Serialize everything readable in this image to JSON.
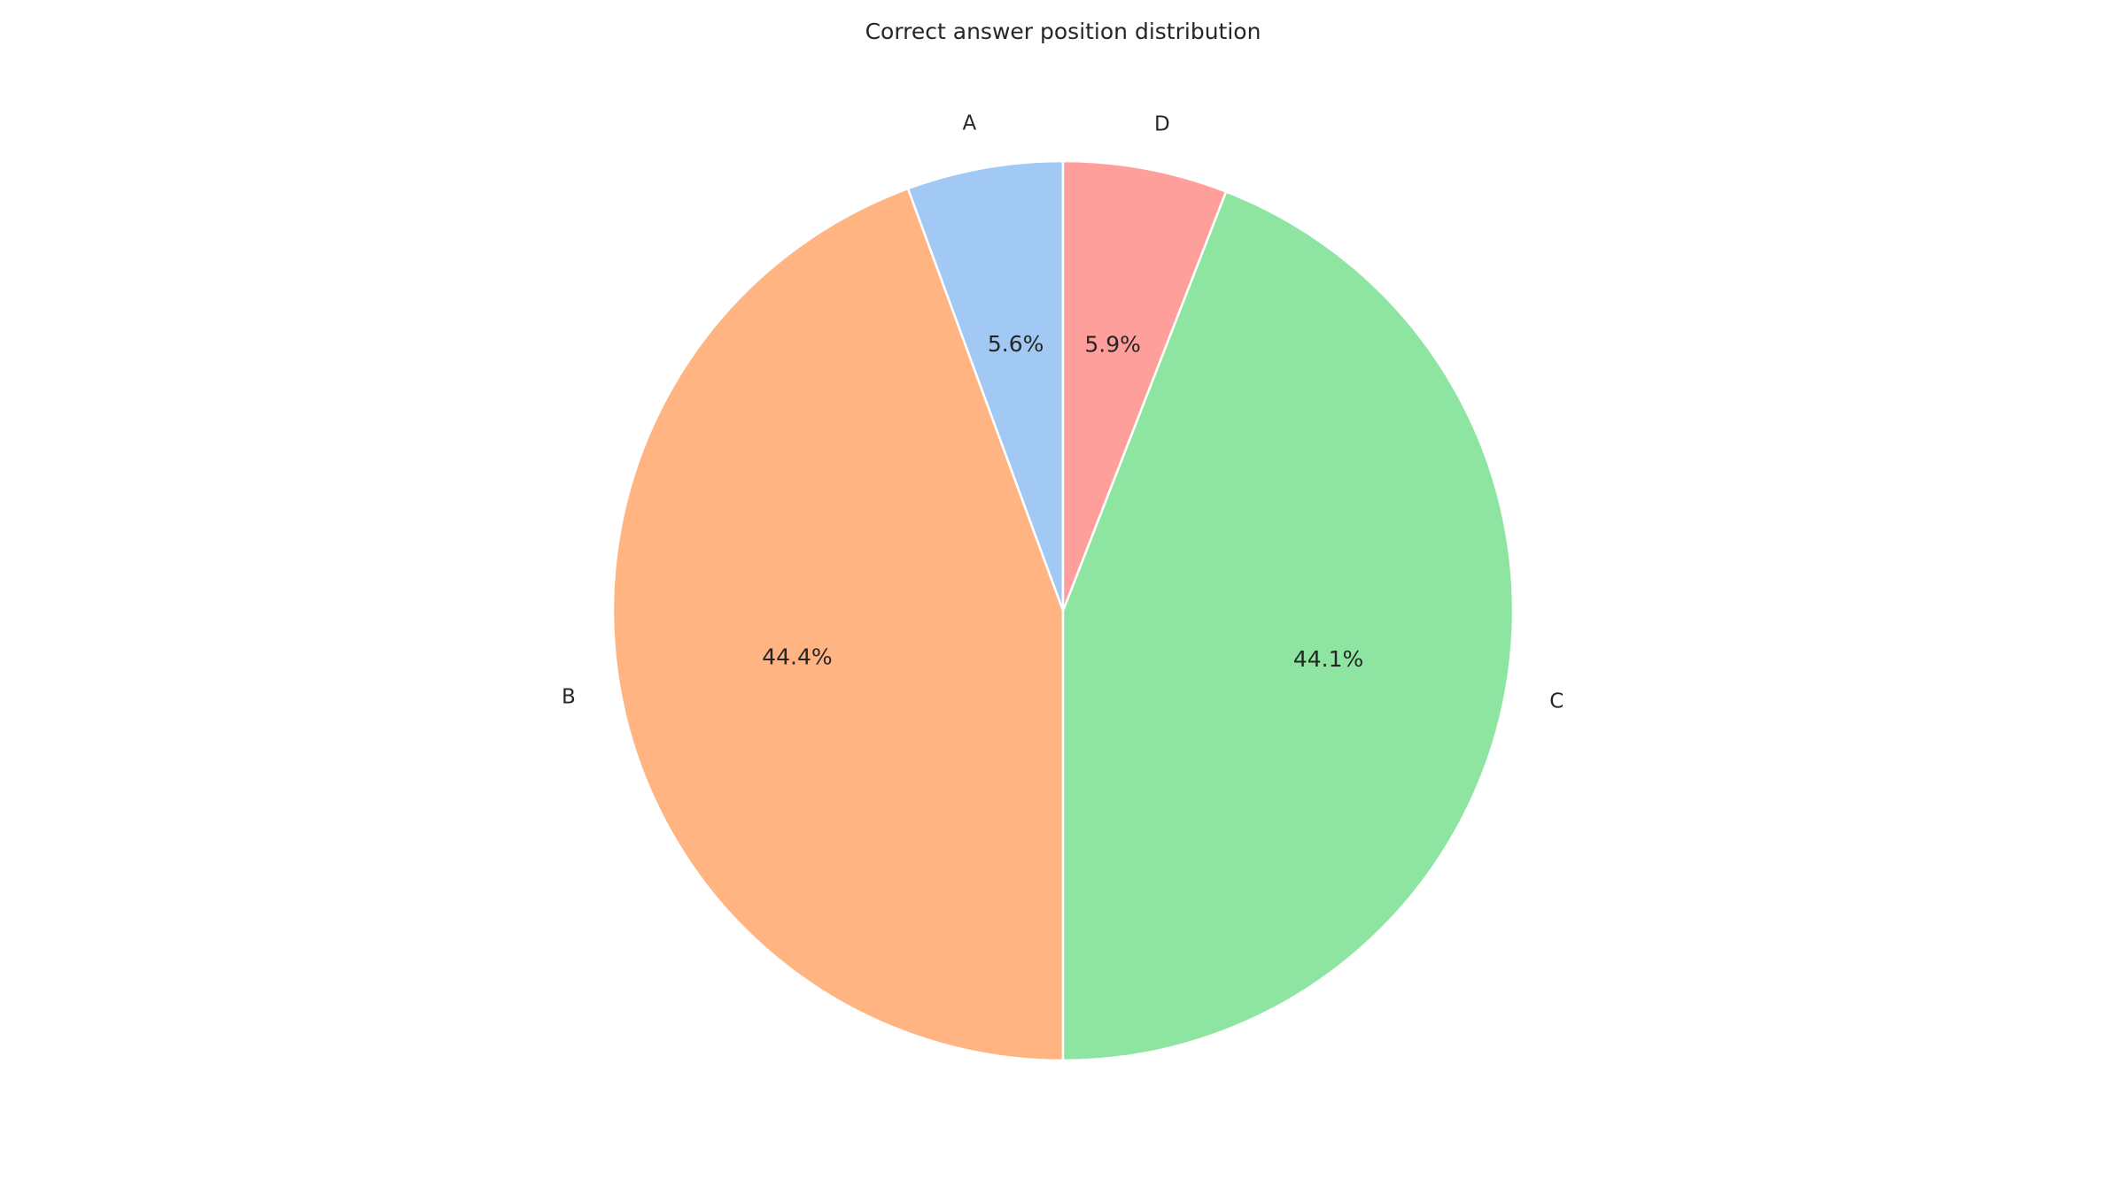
{
  "chart_data": {
    "type": "pie",
    "title": "Correct answer position distribution",
    "start_angle_deg": 90,
    "direction": "counterclockwise",
    "slices": [
      {
        "label": "A",
        "value": 5.6,
        "pct_label": "5.6%",
        "color": "#a1c9f4"
      },
      {
        "label": "B",
        "value": 44.4,
        "pct_label": "44.4%",
        "color": "#ffb482"
      },
      {
        "label": "C",
        "value": 44.1,
        "pct_label": "44.1%",
        "color": "#8de5a1"
      },
      {
        "label": "D",
        "value": 5.9,
        "pct_label": "5.9%",
        "color": "#ff9f9b"
      }
    ]
  }
}
